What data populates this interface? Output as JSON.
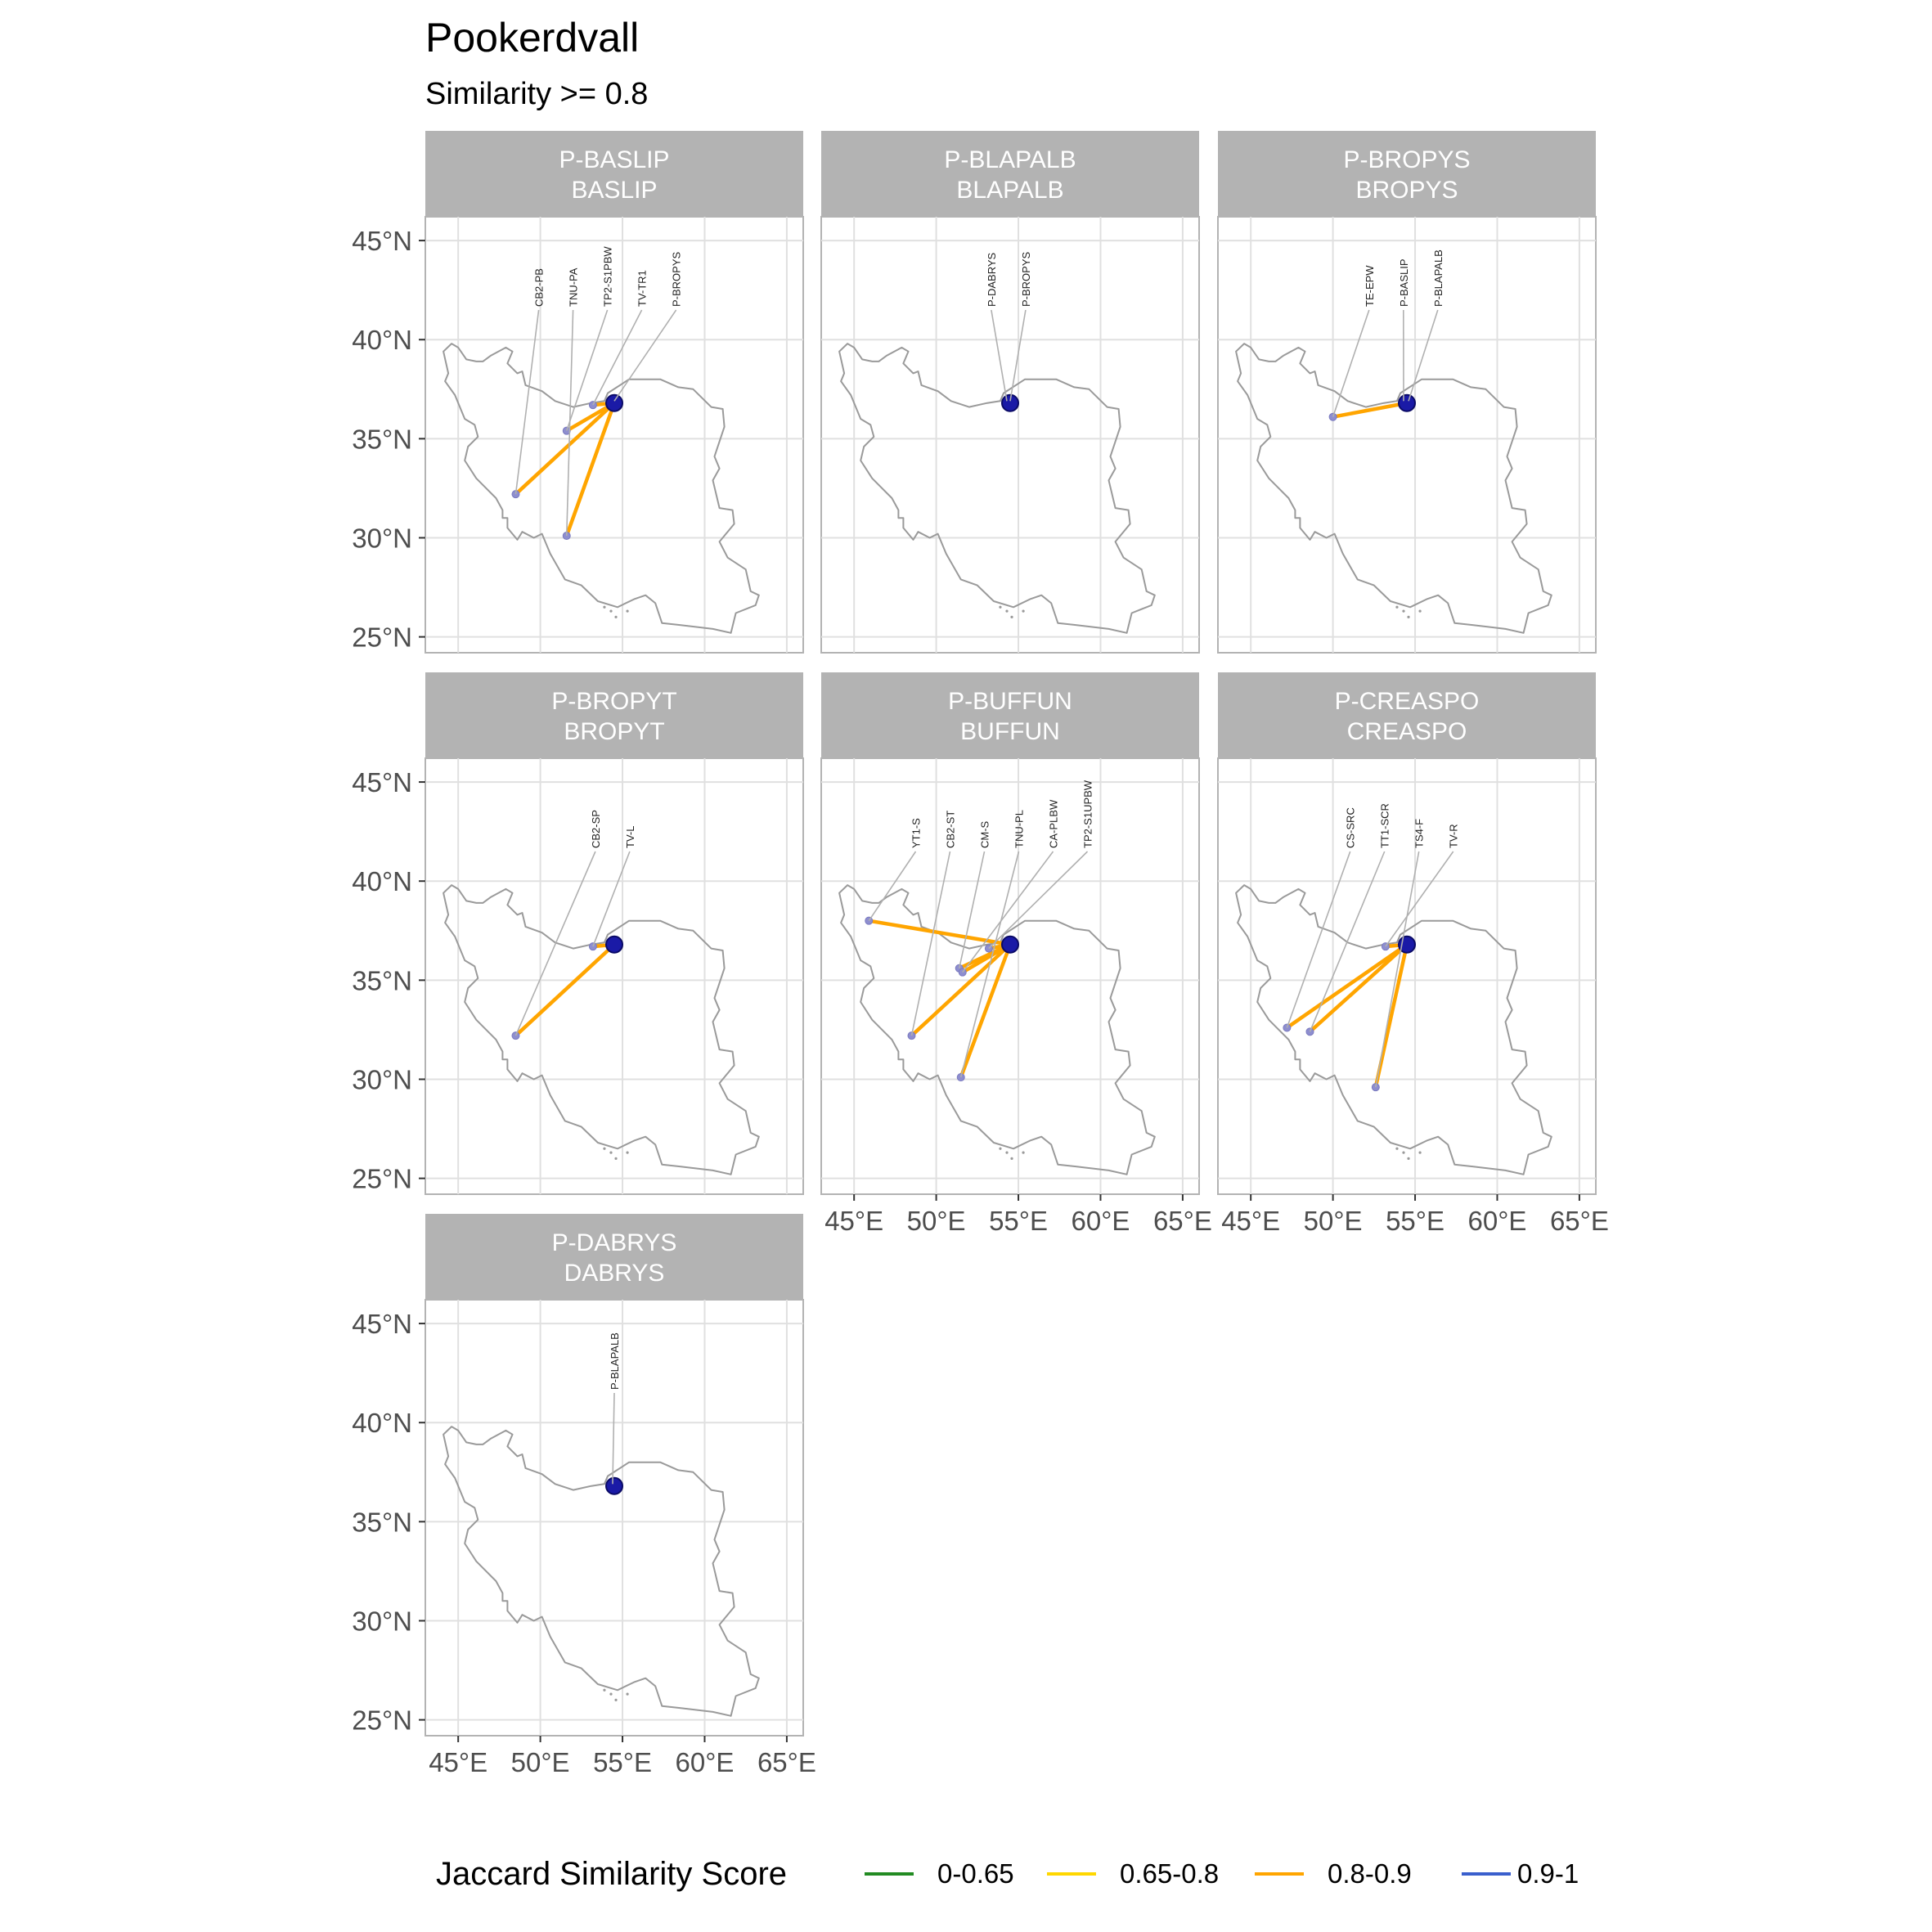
{
  "title": "Pookerdvall",
  "subtitle": "Similarity >= 0.8",
  "axes": {
    "lon_ticks": [
      45,
      50,
      55,
      60,
      65
    ],
    "lon_labels": [
      "45°E",
      "50°E",
      "55°E",
      "60°E",
      "65°E"
    ],
    "lat_ticks": [
      45,
      40,
      35,
      30,
      25
    ],
    "lat_labels": [
      "45°N",
      "40°N",
      "35°N",
      "30°N",
      "25°N"
    ]
  },
  "legend": {
    "title": "Jaccard Similarity Score",
    "position": "bottom",
    "items": [
      {
        "label": "0-0.65",
        "color": "#228b22"
      },
      {
        "label": "0.65-0.8",
        "color": "#ffd700"
      },
      {
        "label": "0.8-0.9",
        "color": "#ffa500"
      },
      {
        "label": "0.9-1",
        "color": "#3a5fcd"
      }
    ]
  },
  "colors": {
    "similarity_line": "#ffa500",
    "focal_point": "#1a1aa6",
    "site_point": "#8e8ecf",
    "strip": "#b3b3b3"
  },
  "chart_data": {
    "type": "map",
    "lon_range": [
      43,
      66
    ],
    "lat_range": [
      24.2,
      46.2
    ],
    "panels": [
      {
        "strip_line1": "P-BASLIP",
        "strip_line2": "BASLIP",
        "focal": {
          "lon": 54.5,
          "lat": 36.8
        },
        "sites": [
          {
            "name": "CB2-PB",
            "lon": 48.5,
            "lat": 32.2,
            "line": true
          },
          {
            "name": "TNU-PA",
            "lon": 51.6,
            "lat": 30.1,
            "line": true
          },
          {
            "name": "TP2-S1PBW",
            "lon": 51.6,
            "lat": 35.4,
            "line": true
          },
          {
            "name": "TV-TR1",
            "lon": 53.2,
            "lat": 36.7,
            "line": true
          },
          {
            "name": "P-BROPYS",
            "lon": 54.5,
            "lat": 36.9,
            "line": false
          }
        ]
      },
      {
        "strip_line1": "P-BLAPALB",
        "strip_line2": "BLAPALB",
        "focal": {
          "lon": 54.5,
          "lat": 36.8
        },
        "sites": [
          {
            "name": "P-DABRYS",
            "lon": 54.3,
            "lat": 36.9,
            "line": false
          },
          {
            "name": "P-BROPYS",
            "lon": 54.5,
            "lat": 36.9,
            "line": false
          }
        ]
      },
      {
        "strip_line1": "P-BROPYS",
        "strip_line2": "BROPYS",
        "focal": {
          "lon": 54.5,
          "lat": 36.8
        },
        "sites": [
          {
            "name": "TE-EPW",
            "lon": 50.0,
            "lat": 36.1,
            "line": true
          },
          {
            "name": "P-BASLIP",
            "lon": 54.3,
            "lat": 36.9,
            "line": false
          },
          {
            "name": "P-BLAPALB",
            "lon": 54.6,
            "lat": 36.9,
            "line": false
          }
        ]
      },
      {
        "strip_line1": "P-BROPYT",
        "strip_line2": "BROPYT",
        "focal": {
          "lon": 54.5,
          "lat": 36.8
        },
        "sites": [
          {
            "name": "CB2-SP",
            "lon": 48.5,
            "lat": 32.2,
            "line": true
          },
          {
            "name": "TV-L",
            "lon": 53.2,
            "lat": 36.7,
            "line": true
          }
        ]
      },
      {
        "strip_line1": "P-BUFFUN",
        "strip_line2": "BUFFUN",
        "focal": {
          "lon": 54.5,
          "lat": 36.8
        },
        "sites": [
          {
            "name": "YT1-S",
            "lon": 45.9,
            "lat": 38.0,
            "line": true
          },
          {
            "name": "CB2-ST",
            "lon": 48.5,
            "lat": 32.2,
            "line": true
          },
          {
            "name": "CM-S",
            "lon": 51.4,
            "lat": 35.6,
            "line": true
          },
          {
            "name": "TNU-PL",
            "lon": 51.5,
            "lat": 30.1,
            "line": true
          },
          {
            "name": "CA-PLBW",
            "lon": 51.6,
            "lat": 35.4,
            "line": true
          },
          {
            "name": "TP2-S1UPBW",
            "lon": 53.2,
            "lat": 36.6,
            "line": true
          }
        ]
      },
      {
        "strip_line1": "P-CREASPO",
        "strip_line2": "CREASPO",
        "focal": {
          "lon": 54.5,
          "lat": 36.8
        },
        "sites": [
          {
            "name": "CS-SRC",
            "lon": 47.2,
            "lat": 32.6,
            "line": true
          },
          {
            "name": "TT1-SCR",
            "lon": 48.6,
            "lat": 32.4,
            "line": true
          },
          {
            "name": "TS4-F",
            "lon": 52.6,
            "lat": 29.6,
            "line": true
          },
          {
            "name": "TV-R",
            "lon": 53.2,
            "lat": 36.7,
            "line": true
          }
        ]
      },
      {
        "strip_line1": "P-DABRYS",
        "strip_line2": "DABRYS",
        "focal": {
          "lon": 54.5,
          "lat": 36.8
        },
        "sites": [
          {
            "name": "P-BLAPALB",
            "lon": 54.4,
            "lat": 36.9,
            "line": false
          }
        ]
      }
    ],
    "grid": true
  }
}
